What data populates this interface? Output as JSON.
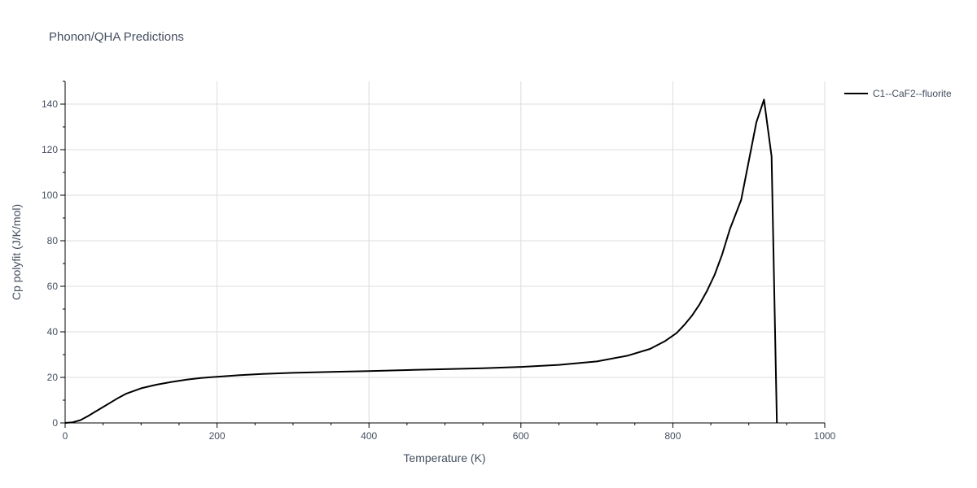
{
  "chart_data": {
    "type": "line",
    "title": "Phonon/QHA Predictions",
    "xlabel": "Temperature (K)",
    "ylabel": "Cp polyfit (J/K/mol)",
    "xlim": [
      0,
      1000
    ],
    "ylim": [
      0,
      150
    ],
    "xticks": [
      0,
      200,
      400,
      600,
      800,
      1000
    ],
    "yticks": [
      0,
      20,
      40,
      60,
      80,
      100,
      120,
      140
    ],
    "grid": true,
    "legend_position": "top-right",
    "series": [
      {
        "name": "C1--CaF2--fluorite",
        "color": "#000000",
        "x": [
          0,
          10,
          20,
          30,
          40,
          50,
          60,
          70,
          80,
          90,
          100,
          120,
          140,
          160,
          180,
          200,
          230,
          260,
          300,
          350,
          400,
          450,
          500,
          550,
          600,
          650,
          700,
          740,
          770,
          790,
          805,
          815,
          825,
          835,
          845,
          855,
          865,
          875,
          890,
          900,
          910,
          920,
          930,
          937
        ],
        "y": [
          0,
          0.3,
          1.2,
          3,
          5,
          7,
          9,
          11,
          12.8,
          14,
          15.2,
          16.8,
          18,
          19,
          19.8,
          20.3,
          21,
          21.5,
          22,
          22.4,
          22.8,
          23.2,
          23.6,
          24,
          24.6,
          25.5,
          27,
          29.5,
          32.5,
          36,
          39.5,
          43,
          47,
          52,
          58,
          65,
          74,
          85,
          98,
          115,
          132,
          142,
          117,
          0
        ]
      }
    ]
  }
}
